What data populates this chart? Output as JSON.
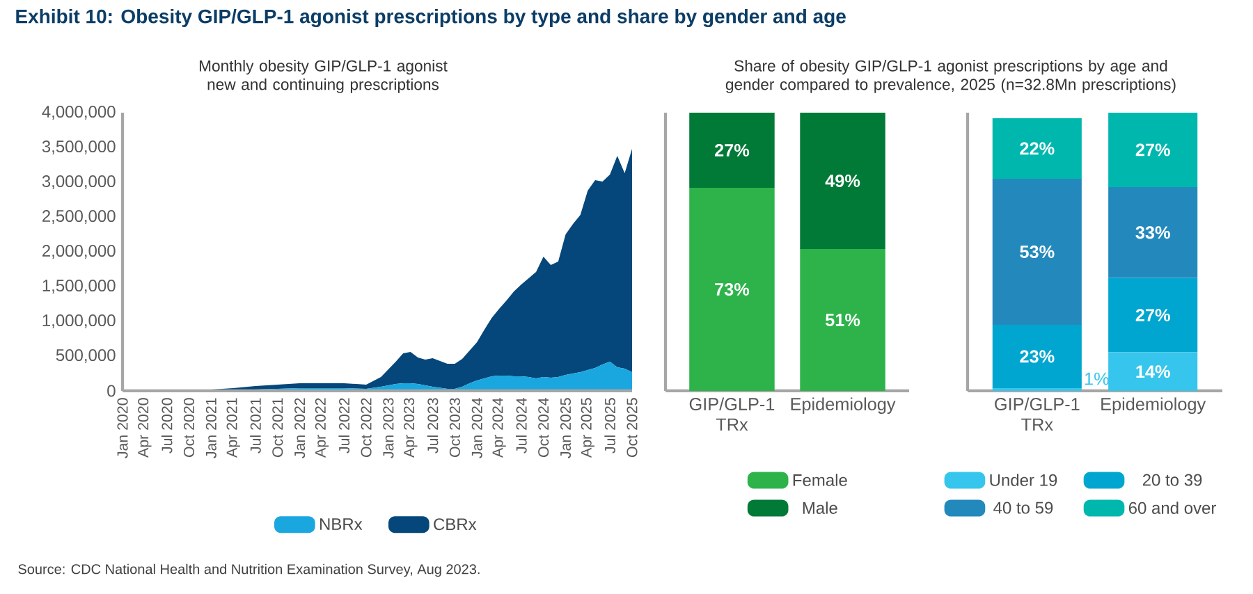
{
  "chart_data": [
    {
      "type": "area",
      "stacked": true,
      "title": "Exhibit 10: Obesity GIP/GLP-1 agonist prescriptions by type and share by gender and age",
      "subtitle": "Monthly obesity GIP/GLP-1 agonist new and continuing prescriptions",
      "annotations": [
        "Source: CDC National Health and Nutrition Examination Survey, Aug 2023."
      ],
      "x": [
        "2020-01",
        "2020-07",
        "2021-01",
        "2021-04",
        "2021-07",
        "2021-10",
        "2022-01",
        "2022-04",
        "2022-07",
        "2022-10",
        "2022-12",
        "2023-02",
        "2023-03",
        "2023-04",
        "2023-05",
        "2023-06",
        "2023-07",
        "2023-09",
        "2023-10",
        "2023-11",
        "2023-12",
        "2024-01",
        "2024-02",
        "2024-03",
        "2024-04",
        "2024-05",
        "2024-06",
        "2024-07",
        "2024-08",
        "2024-09",
        "2024-10",
        "2024-11",
        "2024-12",
        "2025-01",
        "2025-02",
        "2025-03",
        "2025-04",
        "2025-05",
        "2025-06",
        "2025-07",
        "2025-08",
        "2025-09",
        "2025-10"
      ],
      "series": [
        {
          "name": "NBRx",
          "color": "#1aa7e0",
          "values": [
            10000,
            10000,
            10000,
            10000,
            20000,
            30000,
            40000,
            40000,
            40000,
            30000,
            60000,
            100000,
            110000,
            110000,
            100000,
            80000,
            60000,
            30000,
            30000,
            60000,
            110000,
            150000,
            180000,
            210000,
            220000,
            220000,
            210000,
            210000,
            200000,
            180000,
            200000,
            190000,
            200000,
            230000,
            250000,
            270000,
            300000,
            330000,
            380000,
            420000,
            340000,
            320000,
            270000
          ]
        },
        {
          "name": "CBRx",
          "color": "#05477a",
          "values": [
            10000,
            10000,
            10000,
            30000,
            50000,
            60000,
            70000,
            70000,
            70000,
            60000,
            140000,
            320000,
            430000,
            450000,
            380000,
            370000,
            410000,
            360000,
            360000,
            400000,
            470000,
            550000,
            700000,
            840000,
            960000,
            1080000,
            1220000,
            1320000,
            1420000,
            1530000,
            1730000,
            1620000,
            1660000,
            2020000,
            2150000,
            2260000,
            2580000,
            2700000,
            2630000,
            2690000,
            3040000,
            2810000,
            3210000
          ]
        }
      ],
      "xlim": [
        "2020-01",
        "2025-10"
      ],
      "ylim": [
        0,
        4000000
      ],
      "xticks": [
        {
          "value": "2020-01",
          "label": "Jan 2020"
        },
        {
          "value": "2020-04",
          "label": "Apr 2020"
        },
        {
          "value": "2020-07",
          "label": "Jul 2020"
        },
        {
          "value": "2020-10",
          "label": "Oct 2020"
        },
        {
          "value": "2021-01",
          "label": "Jan 2021"
        },
        {
          "value": "2021-04",
          "label": "Apr 2021"
        },
        {
          "value": "2021-07",
          "label": "Jul 2021"
        },
        {
          "value": "2021-10",
          "label": "Oct 2021"
        },
        {
          "value": "2022-01",
          "label": "Jan 2022"
        },
        {
          "value": "2022-04",
          "label": "Apr 2022"
        },
        {
          "value": "2022-07",
          "label": "Jul 2022"
        },
        {
          "value": "2022-10",
          "label": "Oct 2022"
        },
        {
          "value": "2023-01",
          "label": "Jan 2023"
        },
        {
          "value": "2023-04",
          "label": "Apr 2023"
        },
        {
          "value": "2023-07",
          "label": "Jul 2023"
        },
        {
          "value": "2023-10",
          "label": "Oct 2023"
        },
        {
          "value": "2024-01",
          "label": "Jan 2024"
        },
        {
          "value": "2024-04",
          "label": "Apr 2024"
        },
        {
          "value": "2024-07",
          "label": "Jul 2024"
        },
        {
          "value": "2024-10",
          "label": "Oct 2024"
        },
        {
          "value": "2025-01",
          "label": "Jan 2025"
        },
        {
          "value": "2025-04",
          "label": "Apr 2025"
        },
        {
          "value": "2025-07",
          "label": "Jul 2025"
        },
        {
          "value": "2025-10",
          "label": "Oct 2025"
        }
      ],
      "yticks": [
        0,
        {
          "value": 500000,
          "label": "500,000"
        },
        {
          "value": 1000000,
          "label": "1,000,000"
        },
        {
          "value": 1500000,
          "label": "1,500,000"
        },
        {
          "value": 2000000,
          "label": "2,000,000"
        },
        {
          "value": 2500000,
          "label": "2,500,000"
        },
        {
          "value": 3000000,
          "label": "3,000,000"
        },
        {
          "value": 3500000,
          "label": "3,500,000"
        },
        {
          "value": 4000000,
          "label": "4,000,000"
        }
      ],
      "legend": "bottom",
      "marker": "none"
    },
    {
      "type": "bar",
      "stacked": true,
      "title": "Share of obesity GIP/GLP-1 agonist prescriptions by age and gender compared to prevalence, 2025 (n=32.8Mn prescriptions)",
      "categories": [
        "GIP/GLP-1 TRx",
        "Epidemiology"
      ],
      "ylim": [
        0,
        100
      ],
      "tick_labels": "x",
      "series": [
        {
          "name": "Female",
          "color": "#2db34a",
          "values": [
            73,
            51
          ],
          "value_labels": [
            "73%",
            "51%"
          ]
        },
        {
          "name": "Male",
          "color": "#007a36",
          "values": [
            27,
            49
          ],
          "value_labels": [
            "27%",
            "49%"
          ]
        }
      ],
      "legend": "bottom"
    },
    {
      "type": "bar",
      "stacked": true,
      "categories": [
        "GIP/GLP-1 TRx",
        "Epidemiology"
      ],
      "ylim": [
        0,
        101
      ],
      "tick_labels": "x",
      "series": [
        {
          "name": "Under 19",
          "color": "#36c5ec",
          "values": [
            1,
            14
          ],
          "value_labels": [
            "1%",
            "14%"
          ]
        },
        {
          "name": "20 to 39",
          "color": "#00a6cf",
          "values": [
            23,
            27
          ],
          "value_labels": [
            "23%",
            "27%"
          ]
        },
        {
          "name": "40 to 59",
          "color": "#2389bd",
          "values": [
            53,
            33
          ],
          "value_labels": [
            "53%",
            "33%"
          ]
        },
        {
          "name": "60 and over",
          "color": "#00b7ae",
          "values": [
            22,
            27
          ],
          "value_labels": [
            "22%",
            "27%"
          ]
        }
      ],
      "legend": "bottom"
    }
  ]
}
